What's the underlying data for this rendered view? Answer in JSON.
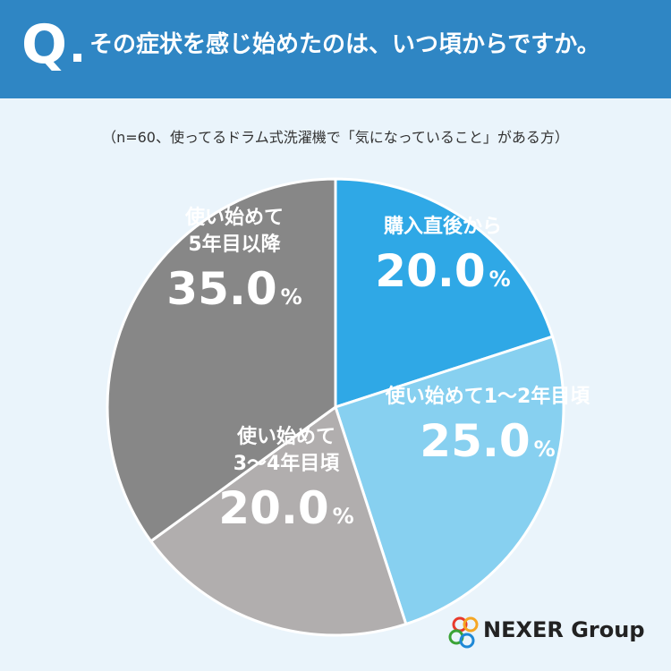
{
  "header": {
    "q_mark": "Q",
    "question": "その症状を感じ始めたのは、いつ頃からですか。"
  },
  "subtitle": "（n=60、使ってるドラム式洗濯機で「気になっていること」がある方）",
  "chart_data": {
    "type": "pie",
    "unit": "%",
    "slices": [
      {
        "label_lines": [
          "購入直後から"
        ],
        "value": 20.0,
        "value_text": "20.0",
        "color": "#2fa8e6",
        "text_color": "#ffffff"
      },
      {
        "label_lines": [
          "使い始めて1〜2年目頃"
        ],
        "value": 25.0,
        "value_text": "25.0",
        "color": "#87d0f0",
        "text_color": "#ffffff"
      },
      {
        "label_lines": [
          "使い始めて",
          "3〜4年目頃"
        ],
        "value": 20.0,
        "value_text": "20.0",
        "color": "#b1aeae",
        "text_color": "#ffffff"
      },
      {
        "label_lines": [
          "使い始めて",
          "5年目以降"
        ],
        "value": 35.0,
        "value_text": "35.0",
        "color": "#878787",
        "text_color": "#ffffff"
      }
    ]
  },
  "logo": {
    "text": "NEXER Group",
    "ring_colors": [
      "#e8392b",
      "#f5a623",
      "#3aa335",
      "#1e88d6"
    ]
  }
}
